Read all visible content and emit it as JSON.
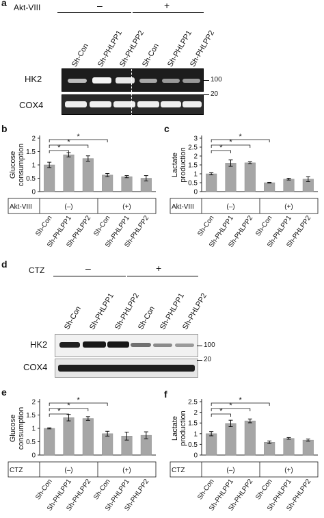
{
  "panels": {
    "a": "a",
    "b": "b",
    "c": "c",
    "d": "d",
    "e": "e",
    "f": "f"
  },
  "blot_a": {
    "treatment_label": "Akt-VIII",
    "minus": "–",
    "plus": "+",
    "lanes": [
      "Sh-Con",
      "Sh-PHLPP1",
      "Sh-PHLPP2",
      "Sh-Con",
      "Sh-PHLPP1",
      "Sh-PHLPP2"
    ],
    "rows": [
      "HK2",
      "COX4"
    ],
    "markers": [
      "100",
      "20"
    ]
  },
  "blot_d": {
    "treatment_label": "CTZ",
    "minus": "–",
    "plus": "+",
    "lanes": [
      "Sh-Con",
      "Sh-PHLPP1",
      "Sh-PHLPP2",
      "Sh-Con",
      "Sh-PHLPP1",
      "Sh-PHLPP2"
    ],
    "rows": [
      "HK2",
      "COX4"
    ],
    "markers": [
      "100",
      "20"
    ]
  },
  "chart_data": [
    {
      "panel": "b",
      "type": "bar",
      "ylabel": "Glucose consumption",
      "yticks": [
        "0",
        "0.5",
        "1",
        "1.5",
        "2"
      ],
      "ylim": [
        0,
        2
      ],
      "categories": [
        "Sh-Con",
        "Sh-PHLPP1",
        "Sh-PHLPP2",
        "Sh-Con",
        "Sh-PHLPP1",
        "Sh-PHLPP2"
      ],
      "values": [
        1.0,
        1.38,
        1.24,
        0.62,
        0.56,
        0.5
      ],
      "errors": [
        0.1,
        0.08,
        0.1,
        0.06,
        0.04,
        0.1
      ],
      "treatment_label": "Akt-VIII",
      "group_labels": [
        "(–)",
        "(+)"
      ],
      "significance": [
        "*",
        "*",
        "*"
      ]
    },
    {
      "panel": "c",
      "type": "bar",
      "ylabel": "Lactate production",
      "yticks": [
        "0",
        "0.5",
        "1",
        "1.5",
        "2",
        "2.5",
        "3"
      ],
      "ylim": [
        0,
        3
      ],
      "categories": [
        "Sh-Con",
        "Sh-PHLPP1",
        "Sh-PHLPP2",
        "Sh-Con",
        "Sh-PHLPP1",
        "Sh-PHLPP2"
      ],
      "values": [
        1.0,
        1.6,
        1.62,
        0.5,
        0.7,
        0.7
      ],
      "errors": [
        0.06,
        0.18,
        0.06,
        0.02,
        0.05,
        0.14
      ],
      "treatment_label": "Akt-VIII",
      "group_labels": [
        "(–)",
        "(+)"
      ],
      "significance": [
        "*",
        "*",
        "*"
      ]
    },
    {
      "panel": "e",
      "type": "bar",
      "ylabel": "Glucose consumption",
      "yticks": [
        "0",
        "0.5",
        "1",
        "1.5",
        "2"
      ],
      "ylim": [
        0,
        2
      ],
      "categories": [
        "Sh-Con",
        "Sh-PHLPP1",
        "Sh-PHLPP2",
        "Sh-Con",
        "Sh-PHLPP1",
        "Sh-PHLPP2"
      ],
      "values": [
        1.0,
        1.4,
        1.37,
        0.8,
        0.71,
        0.74
      ],
      "errors": [
        0.02,
        0.12,
        0.07,
        0.09,
        0.15,
        0.13
      ],
      "treatment_label": "CTZ",
      "group_labels": [
        "(–)",
        "(+)"
      ],
      "significance": [
        "*",
        "*",
        "*"
      ]
    },
    {
      "panel": "f",
      "type": "bar",
      "ylabel": "Lactate production",
      "yticks": [
        "0",
        "0.5",
        "1",
        "1.5",
        "2",
        "2.5"
      ],
      "ylim": [
        0,
        2.5
      ],
      "categories": [
        "Sh-Con",
        "Sh-PHLPP1",
        "Sh-PHLPP2",
        "Sh-Con",
        "Sh-PHLPP1",
        "Sh-PHLPP2"
      ],
      "values": [
        1.0,
        1.48,
        1.6,
        0.6,
        0.78,
        0.7
      ],
      "errors": [
        0.1,
        0.15,
        0.09,
        0.06,
        0.04,
        0.05
      ],
      "treatment_label": "CTZ",
      "group_labels": [
        "(–)",
        "(+)"
      ],
      "significance": [
        "*",
        "*",
        "*"
      ]
    }
  ]
}
